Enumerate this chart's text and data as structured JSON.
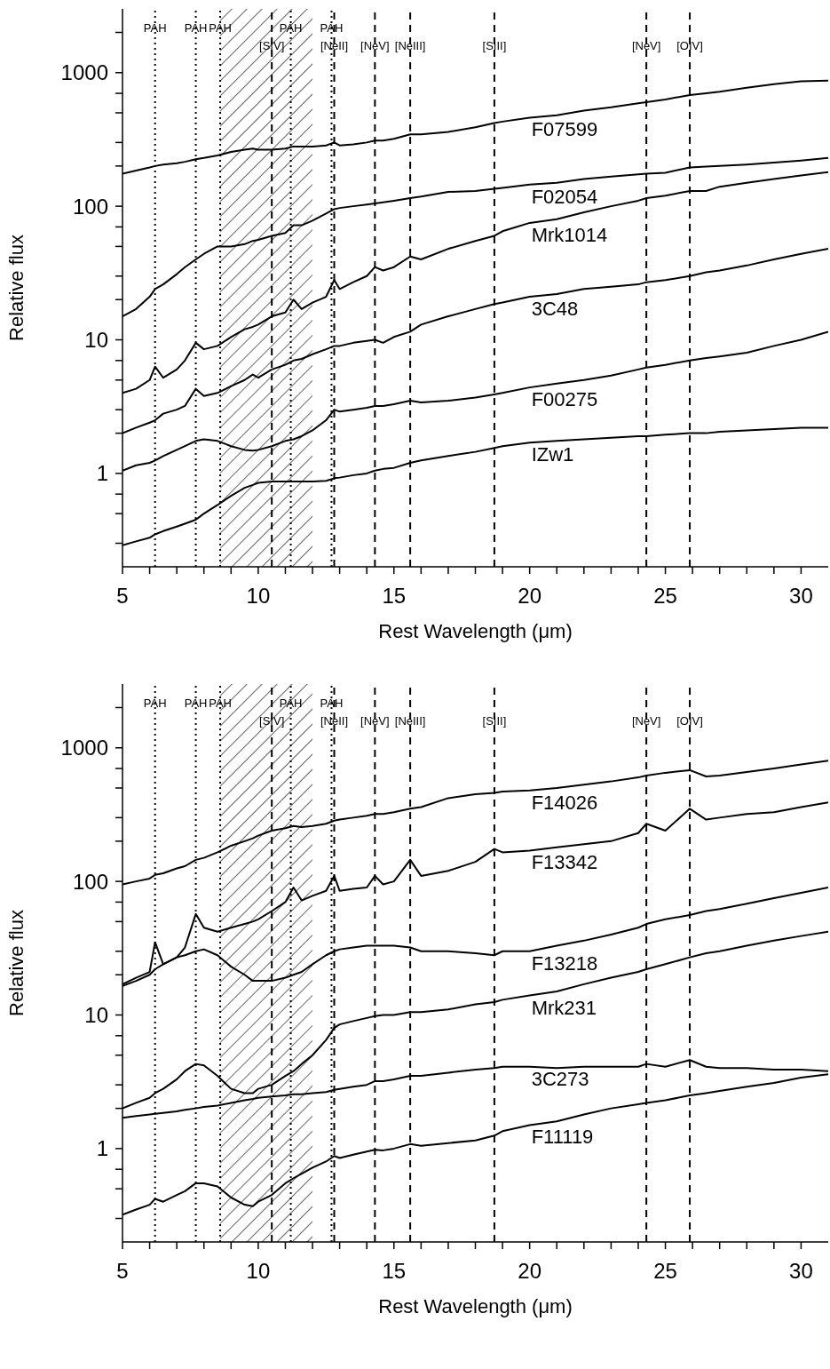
{
  "chart_data": [
    {
      "type": "line",
      "xlabel": "Rest Wavelength (μm)",
      "ylabel": "Relative flux",
      "log": "y",
      "marker": "none",
      "line_style": "solid",
      "xlim": [
        5,
        31
      ],
      "xticks": [
        5,
        {
          "value": 6,
          "label": null
        },
        {
          "value": 7,
          "label": null
        },
        {
          "value": 8,
          "label": null
        },
        {
          "value": 9,
          "label": null
        },
        10,
        {
          "value": 11,
          "label": null
        },
        {
          "value": 12,
          "label": null
        },
        {
          "value": 13,
          "label": null
        },
        {
          "value": 14,
          "label": null
        },
        15,
        {
          "value": 16,
          "label": null
        },
        {
          "value": 17,
          "label": null
        },
        {
          "value": 18,
          "label": null
        },
        {
          "value": 19,
          "label": null
        },
        20,
        {
          "value": 21,
          "label": null
        },
        {
          "value": 22,
          "label": null
        },
        {
          "value": 23,
          "label": null
        },
        {
          "value": 24,
          "label": null
        },
        25,
        {
          "value": 26,
          "label": null
        },
        {
          "value": 27,
          "label": null
        },
        {
          "value": 28,
          "label": null
        },
        {
          "value": 29,
          "label": null
        },
        30
      ],
      "ylim": [
        0.2,
        3000
      ],
      "yticks": [
        {
          "value": 0.3,
          "label": null
        },
        {
          "value": 0.5,
          "label": null
        },
        {
          "value": 0.7,
          "label": null
        },
        1,
        {
          "value": 2,
          "label": null
        },
        {
          "value": 3,
          "label": null
        },
        {
          "value": 5,
          "label": null
        },
        {
          "value": 7,
          "label": null
        },
        10,
        {
          "value": 20,
          "label": null
        },
        {
          "value": 30,
          "label": null
        },
        {
          "value": 50,
          "label": null
        },
        {
          "value": 70,
          "label": null
        },
        100,
        {
          "value": 200,
          "label": null
        },
        {
          "value": 300,
          "label": null
        },
        {
          "value": 500,
          "label": null
        },
        {
          "value": 700,
          "label": null
        },
        1000,
        {
          "value": 2000,
          "label": null
        }
      ],
      "x": [
        5,
        5.5,
        6,
        6.2,
        6.5,
        7,
        7.3,
        7.7,
        8,
        8.5,
        9,
        9.5,
        9.8,
        10,
        10.5,
        11,
        11.3,
        11.6,
        12,
        12.5,
        12.8,
        13,
        13.5,
        14,
        14.3,
        14.6,
        15,
        15.6,
        16,
        17,
        18,
        18.7,
        19,
        20,
        21,
        22,
        23,
        24,
        24.3,
        25,
        25.9,
        26.5,
        27,
        28,
        29,
        30,
        31
      ],
      "series": [
        {
          "name": "F07599",
          "color": "#000000",
          "values": [
            175,
            185,
            195,
            200,
            205,
            210,
            215,
            225,
            230,
            240,
            255,
            265,
            270,
            265,
            265,
            270,
            280,
            280,
            280,
            285,
            300,
            285,
            290,
            300,
            310,
            310,
            320,
            345,
            345,
            360,
            390,
            420,
            430,
            460,
            480,
            520,
            550,
            590,
            600,
            630,
            680,
            700,
            720,
            770,
            820,
            860,
            870
          ]
        },
        {
          "name": "F02054",
          "color": "#000000",
          "values": [
            15,
            17,
            21,
            24,
            26,
            31,
            35,
            40,
            44,
            50,
            50,
            52,
            55,
            56,
            60,
            63,
            72,
            72,
            78,
            88,
            95,
            97,
            100,
            103,
            105,
            107,
            110,
            115,
            118,
            128,
            130,
            135,
            137,
            145,
            150,
            160,
            167,
            173,
            175,
            178,
            195,
            198,
            200,
            205,
            212,
            220,
            230
          ]
        },
        {
          "name": "Mrk1014",
          "color": "#000000",
          "values": [
            4,
            4.3,
            5,
            6.3,
            5.2,
            6,
            7,
            9.5,
            8.5,
            9,
            10.5,
            12,
            12.5,
            13,
            15,
            16,
            20,
            17,
            19,
            21,
            28,
            24,
            27,
            30,
            35,
            33,
            35,
            42,
            40,
            48,
            55,
            60,
            65,
            75,
            80,
            90,
            100,
            110,
            115,
            120,
            130,
            130,
            140,
            150,
            160,
            170,
            180
          ]
        },
        {
          "name": "3C48",
          "color": "#000000",
          "values": [
            2,
            2.2,
            2.4,
            2.5,
            2.8,
            3,
            3.2,
            4.3,
            3.8,
            4,
            4.5,
            5,
            5.5,
            5.2,
            6,
            6.5,
            7,
            7.2,
            7.8,
            8.5,
            9,
            9,
            9.5,
            9.8,
            10,
            9.5,
            10.5,
            11.5,
            13,
            15,
            17,
            18.5,
            19,
            21,
            22,
            24,
            25,
            26,
            27,
            28,
            30,
            32,
            33,
            36,
            40,
            44,
            48
          ]
        },
        {
          "name": "F00275",
          "color": "#000000",
          "values": [
            1.05,
            1.15,
            1.2,
            1.25,
            1.35,
            1.5,
            1.6,
            1.75,
            1.8,
            1.75,
            1.6,
            1.5,
            1.48,
            1.5,
            1.6,
            1.75,
            1.8,
            1.9,
            2.1,
            2.5,
            3,
            2.9,
            3,
            3.1,
            3.2,
            3.2,
            3.3,
            3.5,
            3.4,
            3.5,
            3.7,
            3.9,
            4,
            4.4,
            4.7,
            5,
            5.4,
            6,
            6.2,
            6.5,
            7,
            7.3,
            7.5,
            8,
            9,
            10,
            11.5
          ]
        },
        {
          "name": "IZw1",
          "color": "#000000",
          "values": [
            0.29,
            0.31,
            0.33,
            0.35,
            0.37,
            0.4,
            0.42,
            0.45,
            0.5,
            0.58,
            0.68,
            0.78,
            0.82,
            0.85,
            0.87,
            0.87,
            0.87,
            0.87,
            0.87,
            0.88,
            0.92,
            0.93,
            0.97,
            1.0,
            1.05,
            1.08,
            1.1,
            1.2,
            1.25,
            1.35,
            1.45,
            1.55,
            1.6,
            1.7,
            1.75,
            1.8,
            1.85,
            1.9,
            1.9,
            1.95,
            2,
            2,
            2.05,
            2.1,
            2.15,
            2.2,
            2.2
          ]
        }
      ],
      "ref_lines": [
        {
          "axis": "x",
          "value": 6.2,
          "label": "PAH",
          "line_style": "dotted",
          "color": "#000000"
        },
        {
          "axis": "x",
          "value": 7.7,
          "label": "PAH",
          "line_style": "dotted",
          "color": "#000000"
        },
        {
          "axis": "x",
          "value": 8.6,
          "label": "PAH",
          "line_style": "dotted",
          "color": "#000000"
        },
        {
          "axis": "x",
          "value": 11.2,
          "label": "PAH",
          "line_style": "dotted",
          "color": "#000000"
        },
        {
          "axis": "x",
          "value": 12.7,
          "label": "PAH",
          "line_style": "dotted",
          "color": "#000000"
        },
        {
          "axis": "x",
          "value": 10.5,
          "label": "[SIV]",
          "line_style": "dashed",
          "color": "#000000"
        },
        {
          "axis": "x",
          "value": 12.8,
          "label": "[NeII]",
          "line_style": "dashed",
          "color": "#000000"
        },
        {
          "axis": "x",
          "value": 14.3,
          "label": "[NeV]",
          "line_style": "dashed",
          "color": "#000000"
        },
        {
          "axis": "x",
          "value": 15.6,
          "label": "[NeIII]",
          "line_style": "dashed",
          "color": "#000000"
        },
        {
          "axis": "x",
          "value": 18.7,
          "label": "[SIII]",
          "line_style": "dashed",
          "color": "#000000"
        },
        {
          "axis": "x",
          "value": 24.3,
          "label": "[NeV]",
          "line_style": "dashed",
          "color": "#000000"
        },
        {
          "axis": "x",
          "value": 25.9,
          "label": "[OIV]",
          "line_style": "dashed",
          "color": "#000000"
        }
      ],
      "bands": [
        {
          "axis": "x",
          "from": 8.6,
          "to": 12,
          "color": "#000000"
        }
      ]
    },
    {
      "type": "line",
      "xlabel": "Rest Wavelength (μm)",
      "ylabel": "Relative flux",
      "log": "y",
      "marker": "none",
      "line_style": "solid",
      "xlim": [
        5,
        31
      ],
      "xticks": [
        5,
        {
          "value": 6,
          "label": null
        },
        {
          "value": 7,
          "label": null
        },
        {
          "value": 8,
          "label": null
        },
        {
          "value": 9,
          "label": null
        },
        10,
        {
          "value": 11,
          "label": null
        },
        {
          "value": 12,
          "label": null
        },
        {
          "value": 13,
          "label": null
        },
        {
          "value": 14,
          "label": null
        },
        15,
        {
          "value": 16,
          "label": null
        },
        {
          "value": 17,
          "label": null
        },
        {
          "value": 18,
          "label": null
        },
        {
          "value": 19,
          "label": null
        },
        20,
        {
          "value": 21,
          "label": null
        },
        {
          "value": 22,
          "label": null
        },
        {
          "value": 23,
          "label": null
        },
        {
          "value": 24,
          "label": null
        },
        25,
        {
          "value": 26,
          "label": null
        },
        {
          "value": 27,
          "label": null
        },
        {
          "value": 28,
          "label": null
        },
        {
          "value": 29,
          "label": null
        },
        30
      ],
      "ylim": [
        0.2,
        3000
      ],
      "yticks": [
        {
          "value": 0.3,
          "label": null
        },
        {
          "value": 0.5,
          "label": null
        },
        {
          "value": 0.7,
          "label": null
        },
        1,
        {
          "value": 2,
          "label": null
        },
        {
          "value": 3,
          "label": null
        },
        {
          "value": 5,
          "label": null
        },
        {
          "value": 7,
          "label": null
        },
        10,
        {
          "value": 20,
          "label": null
        },
        {
          "value": 30,
          "label": null
        },
        {
          "value": 50,
          "label": null
        },
        {
          "value": 70,
          "label": null
        },
        100,
        {
          "value": 200,
          "label": null
        },
        {
          "value": 300,
          "label": null
        },
        {
          "value": 500,
          "label": null
        },
        {
          "value": 700,
          "label": null
        },
        1000,
        {
          "value": 2000,
          "label": null
        }
      ],
      "x": [
        5,
        5.5,
        6,
        6.2,
        6.5,
        7,
        7.3,
        7.7,
        8,
        8.5,
        9,
        9.5,
        9.8,
        10,
        10.5,
        11,
        11.3,
        11.6,
        12,
        12.5,
        12.8,
        13,
        13.5,
        14,
        14.3,
        14.6,
        15,
        15.6,
        16,
        17,
        18,
        18.7,
        19,
        20,
        21,
        22,
        23,
        24,
        24.3,
        25,
        25.9,
        26.5,
        27,
        28,
        29,
        30,
        31
      ],
      "series": [
        {
          "name": "F14026",
          "color": "#000000",
          "values": [
            95,
            100,
            105,
            112,
            115,
            125,
            130,
            145,
            150,
            165,
            185,
            200,
            210,
            220,
            240,
            250,
            260,
            255,
            260,
            270,
            285,
            290,
            300,
            310,
            320,
            320,
            330,
            350,
            360,
            420,
            450,
            460,
            470,
            480,
            500,
            530,
            560,
            600,
            620,
            650,
            680,
            610,
            620,
            660,
            700,
            750,
            800
          ]
        },
        {
          "name": "F13342",
          "color": "#000000",
          "values": [
            17,
            19,
            21,
            35,
            24,
            27,
            32,
            57,
            45,
            42,
            45,
            48,
            50,
            52,
            60,
            70,
            90,
            72,
            78,
            85,
            110,
            85,
            88,
            90,
            110,
            95,
            100,
            145,
            110,
            120,
            140,
            175,
            165,
            170,
            180,
            190,
            200,
            230,
            270,
            240,
            350,
            290,
            300,
            320,
            330,
            360,
            390
          ]
        },
        {
          "name": "F13218",
          "color": "#000000",
          "values": [
            16.5,
            18,
            20,
            22,
            24,
            27,
            28,
            30,
            31,
            28,
            23,
            20,
            18,
            18,
            18,
            19,
            20,
            21,
            24,
            28,
            30,
            31,
            32,
            33,
            33,
            33,
            33,
            32,
            30,
            30,
            29,
            28,
            30,
            30,
            33,
            36,
            40,
            45,
            48,
            52,
            56,
            60,
            62,
            68,
            75,
            82,
            90
          ]
        },
        {
          "name": "Mrk231",
          "color": "#000000",
          "values": [
            2,
            2.2,
            2.4,
            2.6,
            2.8,
            3.3,
            3.8,
            4.3,
            4.2,
            3.5,
            2.8,
            2.6,
            2.6,
            2.8,
            3,
            3.5,
            3.8,
            4.3,
            5,
            6.5,
            8,
            8.5,
            9,
            9.5,
            9.8,
            10,
            10,
            10.5,
            10.5,
            11,
            12,
            12.5,
            13,
            14,
            15,
            17,
            19,
            21,
            22,
            24,
            27,
            29,
            30,
            33,
            36,
            39,
            42
          ]
        },
        {
          "name": "3C273",
          "color": "#000000",
          "values": [
            1.7,
            1.75,
            1.8,
            1.82,
            1.85,
            1.9,
            1.95,
            2,
            2.05,
            2.1,
            2.2,
            2.3,
            2.35,
            2.4,
            2.45,
            2.5,
            2.55,
            2.55,
            2.6,
            2.65,
            2.75,
            2.8,
            2.9,
            3,
            3.2,
            3.2,
            3.3,
            3.5,
            3.5,
            3.7,
            3.9,
            4,
            4.1,
            4.1,
            4,
            4.1,
            4.1,
            4.1,
            4.3,
            4.1,
            4.6,
            4.1,
            4,
            4,
            3.9,
            3.9,
            3.8
          ]
        },
        {
          "name": "F11119",
          "color": "#000000",
          "values": [
            0.32,
            0.35,
            0.38,
            0.42,
            0.4,
            0.45,
            0.48,
            0.55,
            0.55,
            0.52,
            0.43,
            0.38,
            0.37,
            0.4,
            0.45,
            0.55,
            0.6,
            0.65,
            0.72,
            0.8,
            0.88,
            0.85,
            0.9,
            0.95,
            0.98,
            0.97,
            1,
            1.08,
            1.05,
            1.1,
            1.15,
            1.25,
            1.35,
            1.5,
            1.6,
            1.8,
            2,
            2.15,
            2.2,
            2.3,
            2.5,
            2.6,
            2.7,
            2.9,
            3.1,
            3.4,
            3.6
          ]
        }
      ],
      "ref_lines": [
        {
          "axis": "x",
          "value": 6.2,
          "label": "PAH",
          "line_style": "dotted",
          "color": "#000000"
        },
        {
          "axis": "x",
          "value": 7.7,
          "label": "PAH",
          "line_style": "dotted",
          "color": "#000000"
        },
        {
          "axis": "x",
          "value": 8.6,
          "label": "PAH",
          "line_style": "dotted",
          "color": "#000000"
        },
        {
          "axis": "x",
          "value": 11.2,
          "label": "PAH",
          "line_style": "dotted",
          "color": "#000000"
        },
        {
          "axis": "x",
          "value": 12.7,
          "label": "PAH",
          "line_style": "dotted",
          "color": "#000000"
        },
        {
          "axis": "x",
          "value": 10.5,
          "label": "[SIV]",
          "line_style": "dashed",
          "color": "#000000"
        },
        {
          "axis": "x",
          "value": 12.8,
          "label": "[NeII]",
          "line_style": "dashed",
          "color": "#000000"
        },
        {
          "axis": "x",
          "value": 14.3,
          "label": "[NeV]",
          "line_style": "dashed",
          "color": "#000000"
        },
        {
          "axis": "x",
          "value": 15.6,
          "label": "[NeIII]",
          "line_style": "dashed",
          "color": "#000000"
        },
        {
          "axis": "x",
          "value": 18.7,
          "label": "[SIII]",
          "line_style": "dashed",
          "color": "#000000"
        },
        {
          "axis": "x",
          "value": 24.3,
          "label": "[NeV]",
          "line_style": "dashed",
          "color": "#000000"
        },
        {
          "axis": "x",
          "value": 25.9,
          "label": "[OIV]",
          "line_style": "dashed",
          "color": "#000000"
        }
      ],
      "bands": [
        {
          "axis": "x",
          "from": 8.6,
          "to": 12,
          "color": "#000000"
        }
      ]
    }
  ]
}
